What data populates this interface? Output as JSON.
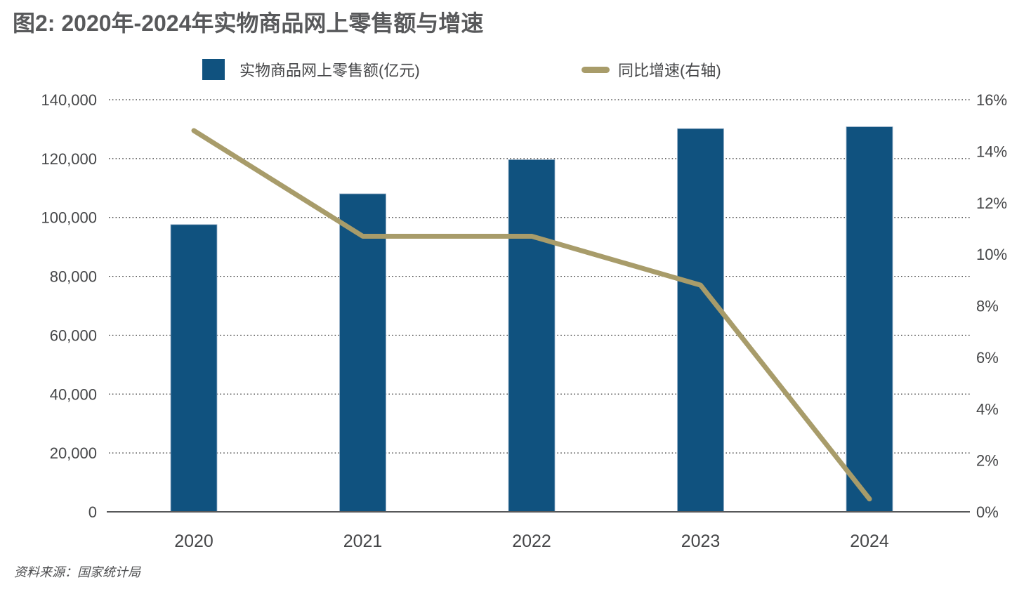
{
  "page": {
    "title": "图2: 2020年-2024年实物商品网上零售额与增速",
    "source": "资料来源：国家统计局"
  },
  "legend": {
    "items": [
      {
        "label": "实物商品网上零售额(亿元)",
        "swatch": "bar-square"
      },
      {
        "label": "同比增速(右轴)",
        "swatch": "line-dash"
      }
    ]
  },
  "colors": {
    "bar": "#10527F",
    "bar_edge": "#9FB5CC",
    "line": "#A89C6A",
    "title_text": "#58595B",
    "axis_text": "#454648",
    "grid_line": "#2E2E2E",
    "axis_line": "#57585A",
    "source_text": "#4D4E50"
  },
  "chart_data": {
    "type": "bar",
    "subtype": "dual-axis combo: bars (left axis) + line (right axis)",
    "title": "图2: 2020年-2024年实物商品网上零售额与增速",
    "categories": [
      "2020",
      "2021",
      "2022",
      "2023",
      "2024"
    ],
    "series": [
      {
        "name": "实物商品网上零售额(亿元)",
        "type": "bar",
        "axis": "left",
        "values": [
          97590,
          108042,
          119642,
          130174,
          130816
        ]
      },
      {
        "name": "同比增速(右轴)",
        "type": "line",
        "axis": "right",
        "unit": "%",
        "values": [
          14.8,
          10.7,
          10.7,
          8.8,
          0.5
        ]
      }
    ],
    "y_left_axis": {
      "min": 0,
      "max": 140000,
      "tick_step": 20000,
      "tick_labels": [
        "0",
        "20,000",
        "40,000",
        "60,000",
        "80,000",
        "100,000",
        "120,000",
        "140,000"
      ]
    },
    "y_right_axis": {
      "min": 0,
      "max": 16,
      "tick_step": 2,
      "tick_labels": [
        "0%",
        "2%",
        "4%",
        "6%",
        "8%",
        "10%",
        "12%",
        "14%",
        "16%"
      ]
    },
    "grid": "horizontal dotted gridlines at left-axis ticks",
    "legend_position": "top-center",
    "source": "资料来源：国家统计局"
  }
}
